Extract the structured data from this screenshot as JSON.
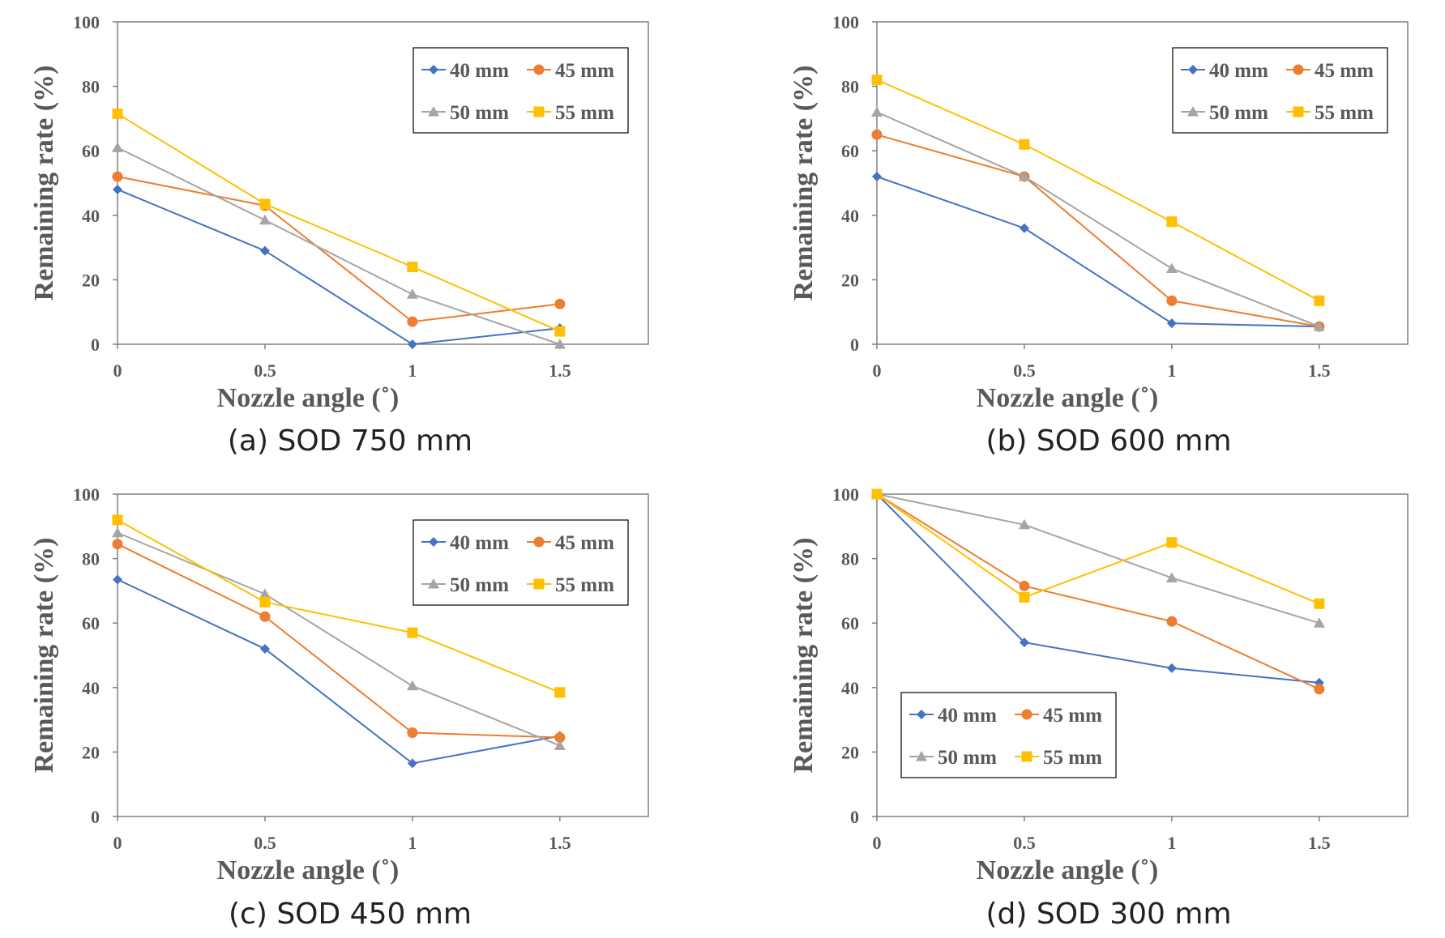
{
  "figure_domain": "Chart",
  "series_styles": [
    {
      "name": "40 mm",
      "color": "#4472C4",
      "marker": "diamond"
    },
    {
      "name": "45 mm",
      "color": "#ED7D31",
      "marker": "circle"
    },
    {
      "name": "50 mm",
      "color": "#A5A5A5",
      "marker": "triangle"
    },
    {
      "name": "55 mm",
      "color": "#FFC000",
      "marker": "square"
    }
  ],
  "chart_data": [
    {
      "type": "line",
      "caption": "(a) SOD 750 mm",
      "title": "",
      "xlabel": "Nozzle angle (˚)",
      "ylabel": "Remaining rate (%)",
      "x": [
        0,
        0.5,
        1,
        1.5
      ],
      "xticks": [
        "0",
        "0.5",
        "1",
        "1.5"
      ],
      "xlim": [
        0,
        1.8
      ],
      "ylim": [
        0,
        100
      ],
      "yticks": [
        "0",
        "20",
        "40",
        "60",
        "80",
        "100"
      ],
      "legend_position": "top-right",
      "series": [
        {
          "name": "40 mm",
          "values": [
            48,
            29,
            0,
            5
          ]
        },
        {
          "name": "45 mm",
          "values": [
            52,
            43,
            7,
            12.5
          ]
        },
        {
          "name": "50 mm",
          "values": [
            61,
            38.5,
            15.5,
            0
          ]
        },
        {
          "name": "55 mm",
          "values": [
            71.5,
            43.5,
            24,
            4
          ]
        }
      ]
    },
    {
      "type": "line",
      "caption": "(b) SOD 600 mm",
      "title": "",
      "xlabel": "Nozzle angle (˚)",
      "ylabel": "Remaining rate (%)",
      "x": [
        0,
        0.5,
        1,
        1.5
      ],
      "xticks": [
        "0",
        "0.5",
        "1",
        "1.5"
      ],
      "xlim": [
        0,
        1.8
      ],
      "ylim": [
        0,
        100
      ],
      "yticks": [
        "0",
        "20",
        "40",
        "60",
        "80",
        "100"
      ],
      "legend_position": "top-right",
      "series": [
        {
          "name": "40 mm",
          "values": [
            52,
            36,
            6.5,
            5.5
          ]
        },
        {
          "name": "45 mm",
          "values": [
            65,
            52,
            13.5,
            5.5
          ]
        },
        {
          "name": "50 mm",
          "values": [
            72,
            52,
            23.5,
            5.5
          ]
        },
        {
          "name": "55 mm",
          "values": [
            82,
            62,
            38,
            13.5
          ]
        }
      ]
    },
    {
      "type": "line",
      "caption": "(c) SOD 450 mm",
      "title": "",
      "xlabel": "Nozzle angle (˚)",
      "ylabel": "Remaining rate (%)",
      "x": [
        0,
        0.5,
        1,
        1.5
      ],
      "xticks": [
        "0",
        "0.5",
        "1",
        "1.5"
      ],
      "xlim": [
        0,
        1.8
      ],
      "ylim": [
        0,
        100
      ],
      "yticks": [
        "0",
        "20",
        "40",
        "60",
        "80",
        "100"
      ],
      "legend_position": "top-right",
      "series": [
        {
          "name": "40 mm",
          "values": [
            73.5,
            52,
            16.5,
            25
          ]
        },
        {
          "name": "45 mm",
          "values": [
            84.5,
            62,
            26,
            24.5
          ]
        },
        {
          "name": "50 mm",
          "values": [
            88,
            69,
            40.5,
            22
          ]
        },
        {
          "name": "55 mm",
          "values": [
            92,
            66.5,
            57,
            38.5
          ]
        }
      ]
    },
    {
      "type": "line",
      "caption": "(d) SOD 300 mm",
      "title": "",
      "xlabel": "Nozzle angle (˚)",
      "ylabel": "Remaining rate (%)",
      "x": [
        0,
        0.5,
        1,
        1.5
      ],
      "xticks": [
        "0",
        "0.5",
        "1",
        "1.5"
      ],
      "xlim": [
        0,
        1.8
      ],
      "ylim": [
        0,
        100
      ],
      "yticks": [
        "0",
        "20",
        "40",
        "60",
        "80",
        "100"
      ],
      "legend_position": "bottom-left",
      "series": [
        {
          "name": "40 mm",
          "values": [
            100,
            54,
            46,
            41.5
          ]
        },
        {
          "name": "45 mm",
          "values": [
            100,
            71.5,
            60.5,
            39.5
          ]
        },
        {
          "name": "50 mm",
          "values": [
            100,
            90.5,
            74,
            60
          ]
        },
        {
          "name": "55 mm",
          "values": [
            100,
            68,
            85,
            66
          ]
        }
      ]
    }
  ]
}
